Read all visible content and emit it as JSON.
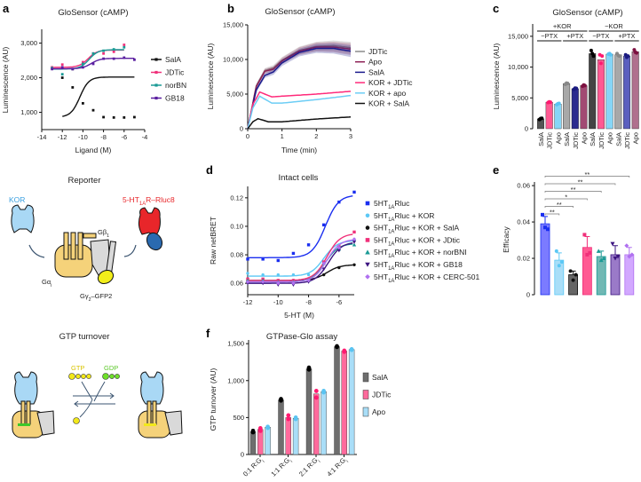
{
  "panel_labels": [
    "a",
    "b",
    "c",
    "d",
    "e",
    "f"
  ],
  "schematic": {
    "reporter_title": "Reporter",
    "kor_label": "KOR",
    "receptor_label": "5-HT1AR–Rluc8",
    "gbeta_label": "Gβ1",
    "galpha_label": "Gαi",
    "ggamma_label": "Gγ2–GFP2",
    "gtp_title": "GTP turnover",
    "gtp_label": "GTP",
    "gdp_label": "GDP",
    "colors": {
      "kor": "#a9d8f5",
      "receptor": "#e8262a",
      "rluc": "#2a6ab0",
      "galpha": "#f5d27a",
      "gbg": "#d9d9d9",
      "gfp": "#f2ee1a",
      "gtp": "#f2e81a",
      "gdp": "#6fe02a"
    }
  },
  "chart_data": [
    {
      "id": "a",
      "type": "scatter-fit",
      "title": "GloSensor (cAMP)",
      "xlabel": "Ligand (M)",
      "ylabel": "Luminescence (AU)",
      "xlim": [
        -14,
        -4
      ],
      "ylim": [
        500,
        3400
      ],
      "xticks": [
        "-14",
        "-12",
        "-10",
        "-8",
        "-6",
        "-4"
      ],
      "xtick_values": [
        -14,
        -12,
        -10,
        -8,
        -6,
        -4
      ],
      "yticks": [
        "1,000",
        "2,000",
        "3,000"
      ],
      "ytick_values": [
        1000,
        2000,
        3000
      ],
      "legend": "right",
      "series": [
        {
          "name": "SalA",
          "color": "#111111",
          "x": [
            -12,
            -11,
            -10,
            -9,
            -8,
            -7,
            -6,
            -5
          ],
          "y": [
            2000,
            1720,
            1260,
            1060,
            860,
            850,
            850,
            860
          ],
          "fit": {
            "bottom": 860,
            "top": 2020,
            "logec50": -10.3,
            "from": -12,
            "to": -5
          }
        },
        {
          "name": "JDTic",
          "color": "#f0307a",
          "x": [
            -13,
            -12,
            -11,
            -10,
            -9,
            -8,
            -7,
            -6
          ],
          "y": [
            2300,
            2380,
            2250,
            2450,
            2700,
            2700,
            2750,
            2950
          ],
          "fit": {
            "bottom": 2300,
            "top": 2800,
            "logec50": -9.5,
            "from": -13,
            "to": -6
          }
        },
        {
          "name": "norBN",
          "color": "#1a9a95",
          "x": [
            -13,
            -12,
            -11,
            -10,
            -9,
            -8,
            -7,
            -6
          ],
          "y": [
            2280,
            2100,
            2250,
            2400,
            2700,
            2780,
            2820,
            2880
          ],
          "fit": {
            "bottom": 2250,
            "top": 2810,
            "logec50": -9.4,
            "from": -13,
            "to": -6
          }
        },
        {
          "name": "GB18",
          "color": "#5a1ea0",
          "x": [
            -13,
            -12,
            -11,
            -10,
            -9,
            -8,
            -7,
            -6,
            -5
          ],
          "y": [
            2250,
            2300,
            2250,
            2300,
            2400,
            2550,
            2550,
            2580,
            2520
          ],
          "fit": {
            "bottom": 2260,
            "top": 2560,
            "logec50": -9.2,
            "from": -13,
            "to": -5
          }
        }
      ]
    },
    {
      "id": "b",
      "type": "line",
      "title": "GloSensor (cAMP)",
      "xlabel": "Time (min)",
      "ylabel": "Luminescence (AU)",
      "xlim": [
        0,
        3
      ],
      "ylim": [
        0,
        15000
      ],
      "xticks": [
        "0",
        "1",
        "2",
        "3"
      ],
      "xtick_values": [
        0,
        1,
        2,
        3
      ],
      "yticks": [
        "0",
        "5,000",
        "10,000",
        "15,000"
      ],
      "ytick_values": [
        0,
        5000,
        10000,
        15000
      ],
      "legend": "right",
      "series": [
        {
          "name": "JDTic",
          "color": "#8a8a8a",
          "band": true,
          "x": [
            0,
            0.25,
            0.5,
            0.75,
            1,
            1.5,
            2,
            2.5,
            3
          ],
          "y": [
            0,
            6200,
            8400,
            8800,
            9900,
            11300,
            11900,
            12000,
            11700
          ]
        },
        {
          "name": "Apo",
          "color": "#8c1f55",
          "band": true,
          "x": [
            0,
            0.25,
            0.5,
            0.75,
            1,
            1.5,
            2,
            2.5,
            3
          ],
          "y": [
            0,
            6100,
            8300,
            8600,
            9800,
            11200,
            11800,
            11800,
            11500
          ]
        },
        {
          "name": "SalA",
          "color": "#1a1a8c",
          "band": true,
          "x": [
            0,
            0.25,
            0.5,
            0.75,
            1,
            1.5,
            2,
            2.5,
            3
          ],
          "y": [
            0,
            5600,
            7700,
            8200,
            9500,
            11000,
            11600,
            11600,
            11200
          ]
        },
        {
          "name": "KOR + JDTic",
          "color": "#ff2a7a",
          "x": [
            0,
            0.15,
            0.35,
            0.7,
            1,
            2,
            3
          ],
          "y": [
            0,
            3500,
            5300,
            4600,
            4700,
            5000,
            5400
          ]
        },
        {
          "name": "KOR + apo",
          "color": "#6ccdf5",
          "x": [
            0,
            0.15,
            0.35,
            0.7,
            1,
            2,
            3
          ],
          "y": [
            0,
            3000,
            4700,
            3700,
            3700,
            4200,
            4800
          ]
        },
        {
          "name": "KOR + SalA",
          "color": "#111111",
          "x": [
            0,
            0.15,
            0.3,
            0.6,
            1,
            2,
            3
          ],
          "y": [
            0,
            1000,
            1450,
            1000,
            1000,
            1400,
            1700
          ]
        }
      ]
    },
    {
      "id": "c",
      "type": "bar",
      "title": "GloSensor (cAMP)",
      "ylabel": "Luminescence (AU)",
      "ylim": [
        0,
        17000
      ],
      "yticks": [
        "0",
        "5,000",
        "10,000",
        "15,000"
      ],
      "ytick_values": [
        0,
        5000,
        10000,
        15000
      ],
      "categories": [
        "SalA",
        "JDTic",
        "Apo",
        "SalA",
        "JDTic",
        "Apo",
        "SalA",
        "JDTic",
        "Apo",
        "SalA",
        "JDTic",
        "Apo"
      ],
      "values": [
        1600,
        4300,
        4000,
        7300,
        6500,
        7000,
        12200,
        11200,
        12100,
        12000,
        11800,
        12500
      ],
      "points": [
        [
          1500,
          1650,
          1700
        ],
        [
          4250,
          4350,
          4300
        ],
        [
          3900,
          4050,
          4100
        ],
        [
          7200,
          7400,
          7350
        ],
        [
          6400,
          6600,
          6550
        ],
        [
          6900,
          7100,
          7000
        ],
        [
          12700,
          12200,
          11800
        ],
        [
          12000,
          10600,
          11800
        ],
        [
          12100,
          12200,
          12000
        ],
        [
          12200,
          11900,
          11800
        ],
        [
          12000,
          11600,
          11800
        ],
        [
          12800,
          12400,
          12300
        ]
      ],
      "colors": [
        "#555555",
        "#ff5a93",
        "#86d6f7",
        "#a8a8a8",
        "#2b2b8f",
        "#a14a73",
        "#444444",
        "#ff5a93",
        "#86d6f7",
        "#a8a8a8",
        "#5b5fbf",
        "#b0708e"
      ],
      "point_colors": [
        "#000000",
        "#ff1a70",
        "#5ac4f2",
        "#888888",
        "#1a1a80",
        "#7d1040",
        "#000000",
        "#ff1a70",
        "#5ac4f2",
        "#888888",
        "#1a1a80",
        "#7d1040"
      ],
      "groups": [
        {
          "label": "+KOR",
          "from": 0,
          "to": 5,
          "level": 0
        },
        {
          "label": "−KOR",
          "from": 6,
          "to": 11,
          "level": 0
        },
        {
          "label": "−PTX",
          "from": 0,
          "to": 2,
          "level": 1
        },
        {
          "label": "+PTX",
          "from": 3,
          "to": 5,
          "level": 1
        },
        {
          "label": "−PTX",
          "from": 6,
          "to": 8,
          "level": 1
        },
        {
          "label": "+PTX",
          "from": 9,
          "to": 11,
          "level": 1
        }
      ]
    },
    {
      "id": "d",
      "type": "scatter-fit",
      "title": "Intact cells",
      "xlabel": "5-HT (M)",
      "ylabel": "Raw netBRET",
      "xlim": [
        -12,
        -5
      ],
      "ylim": [
        0.052,
        0.128
      ],
      "xticks": [
        "-12",
        "-10",
        "-8",
        "-6"
      ],
      "xtick_values": [
        -12,
        -10,
        -8,
        -6
      ],
      "yticks": [
        "0.06",
        "0.08",
        "0.10",
        "0.12"
      ],
      "ytick_values": [
        0.06,
        0.08,
        0.1,
        0.12
      ],
      "legend": "right",
      "series": [
        {
          "name": "5HT1ARluc",
          "color": "#1a2ef0",
          "marker": "square",
          "x": [
            -12,
            -11,
            -10,
            -9,
            -8,
            -7,
            -6,
            -5
          ],
          "y": [
            0.077,
            0.077,
            0.076,
            0.081,
            0.087,
            0.101,
            0.117,
            0.124
          ],
          "fit": {
            "bottom": 0.078,
            "top": 0.122,
            "logec50": -6.9
          }
        },
        {
          "name": "5HT1ARluc + KOR",
          "color": "#5cc8f5",
          "marker": "circle",
          "x": [
            -12,
            -11,
            -10,
            -9,
            -8,
            -7,
            -6,
            -5
          ],
          "y": [
            0.067,
            0.066,
            0.066,
            0.066,
            0.066,
            0.075,
            0.085,
            0.09
          ],
          "fit": {
            "bottom": 0.065,
            "top": 0.09,
            "logec50": -7.0
          }
        },
        {
          "name": "5HT1ARluc + KOR + SalA",
          "color": "#111111",
          "marker": "circle",
          "x": [
            -12,
            -11,
            -10,
            -9,
            -8,
            -7,
            -6,
            -5
          ],
          "y": [
            0.062,
            0.062,
            0.062,
            0.062,
            0.062,
            0.066,
            0.071,
            0.073
          ],
          "fit": {
            "bottom": 0.062,
            "top": 0.073,
            "logec50": -6.8
          }
        },
        {
          "name": "5HT1ARluc + KOR + JDtic",
          "color": "#f0307a",
          "marker": "square",
          "x": [
            -12,
            -11,
            -10,
            -9,
            -8,
            -7,
            -6,
            -5
          ],
          "y": [
            0.063,
            0.063,
            0.062,
            0.062,
            0.063,
            0.075,
            0.086,
            0.096
          ],
          "fit": {
            "bottom": 0.062,
            "top": 0.095,
            "logec50": -6.8
          }
        },
        {
          "name": "5HT1ARluc + KOR + norBNI",
          "color": "#1a9a95",
          "marker": "triangle",
          "x": [
            -12,
            -11,
            -10,
            -9,
            -8,
            -7,
            -6,
            -5
          ],
          "y": [
            0.062,
            0.062,
            0.061,
            0.061,
            0.062,
            0.074,
            0.084,
            0.087
          ],
          "fit": {
            "bottom": 0.061,
            "top": 0.088,
            "logec50": -6.9
          }
        },
        {
          "name": "5HT1ARluc + KOR + GB18",
          "color": "#3c1480",
          "marker": "triangle-down",
          "x": [
            -12,
            -11,
            -10,
            -9,
            -8,
            -7,
            -6,
            -5
          ],
          "y": [
            0.06,
            0.06,
            0.059,
            0.059,
            0.061,
            0.07,
            0.083,
            0.089
          ],
          "fit": {
            "bottom": 0.06,
            "top": 0.089,
            "logec50": -6.7
          }
        },
        {
          "name": "5HT1ARluc + KOR + CERC-501",
          "color": "#b070f0",
          "marker": "diamond",
          "x": [
            -12,
            -11,
            -10,
            -9,
            -8,
            -7,
            -6,
            -5
          ],
          "y": [
            0.061,
            0.061,
            0.06,
            0.06,
            0.062,
            0.074,
            0.085,
            0.091
          ],
          "fit": {
            "bottom": 0.061,
            "top": 0.091,
            "logec50": -6.8
          }
        }
      ]
    },
    {
      "id": "e",
      "type": "bar",
      "ylabel": "Efficacy",
      "ylim": [
        0,
        0.062
      ],
      "yticks": [
        "0",
        "0.02",
        "0.04",
        "0.06"
      ],
      "ytick_values": [
        0,
        0.02,
        0.04,
        0.06
      ],
      "categories": [
        "5HT1ARluc",
        "5HT1ARluc + KOR",
        "5HT1ARluc + KOR + SalA",
        "5HT1ARluc + KOR + JDtic",
        "5HT1ARluc + KOR + norBNI",
        "5HT1ARluc + KOR + GB18",
        "5HT1ARluc + KOR + CERC-501"
      ],
      "values": [
        0.039,
        0.019,
        0.011,
        0.026,
        0.021,
        0.022,
        0.022
      ],
      "errors": [
        0.004,
        0.004,
        0.002,
        0.006,
        0.003,
        0.005,
        0.004
      ],
      "points": [
        [
          0.044,
          0.037,
          0.036
        ],
        [
          0.024,
          0.016,
          0.018
        ],
        [
          0.013,
          0.008,
          0.011
        ],
        [
          0.033,
          0.022,
          0.023
        ],
        [
          0.024,
          0.019,
          0.02
        ],
        [
          0.028,
          0.02,
          0.021
        ],
        [
          0.027,
          0.021,
          0.022
        ]
      ],
      "colors": [
        "#7b7bff",
        "#a9def8",
        "#666666",
        "#ff5a93",
        "#70b8b4",
        "#9a7ac8",
        "#d2a8ff"
      ],
      "point_colors": [
        "#1a2ef0",
        "#5cc8f5",
        "#111111",
        "#f0307a",
        "#1a9a95",
        "#3c1480",
        "#b070f0"
      ],
      "significance": [
        {
          "from": 0,
          "to": 1,
          "label": "**"
        },
        {
          "from": 0,
          "to": 2,
          "label": "**"
        },
        {
          "from": 0,
          "to": 3,
          "label": "*"
        },
        {
          "from": 0,
          "to": 4,
          "label": "**"
        },
        {
          "from": 0,
          "to": 5,
          "label": "**"
        },
        {
          "from": 0,
          "to": 6,
          "label": "**"
        }
      ]
    },
    {
      "id": "f",
      "type": "bar",
      "title": "GTPase-Glo assay",
      "ylabel": "GTP turnover (AU)",
      "ylim": [
        0,
        1550
      ],
      "yticks": [
        "0",
        "500",
        "1,000",
        "1,500"
      ],
      "ytick_values": [
        0,
        500,
        1000,
        1500
      ],
      "categories": [
        "0:1 R:Gi",
        "1:1 R:Gi",
        "2:1 R:Gi",
        "4:1 R:Gi"
      ],
      "legend": "right",
      "series": [
        {
          "name": "SalA",
          "color": "#6e6e6e",
          "point_color": "#000000",
          "values": [
            310,
            740,
            1160,
            1460
          ],
          "points": [
            [
              300,
              320
            ],
            [
              730,
              750
            ],
            [
              1150,
              1175
            ],
            [
              1455,
              1465
            ]
          ]
        },
        {
          "name": "JDTic",
          "color": "#ff6a9c",
          "point_color": "#ff1a70",
          "values": [
            340,
            500,
            820,
            1400
          ],
          "points": [
            [
              320,
              355
            ],
            [
              480,
              530
            ],
            [
              770,
              860
            ],
            [
              1390,
              1405
            ]
          ]
        },
        {
          "name": "Apo",
          "color": "#a9def8",
          "point_color": "#5ac4f2",
          "values": [
            370,
            490,
            850,
            1420
          ],
          "points": [
            [
              360,
              375
            ],
            [
              480,
              500
            ],
            [
              840,
              860
            ],
            [
              1415,
              1425
            ]
          ]
        }
      ]
    }
  ]
}
